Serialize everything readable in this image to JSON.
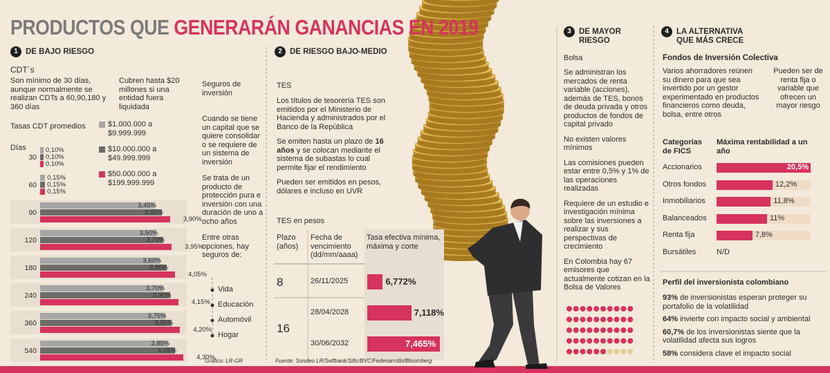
{
  "title": {
    "gray": "PRODUCTOS QUE",
    "pink": "GENERARÁN GANANCIAS EN 2019"
  },
  "low_risk": {
    "number": "1",
    "heading": "DE BAJO RIESGO",
    "product": "CDT´s",
    "intro": "Son mínimo de 30 días, aunque normalmente se realizan CDTs a 60,90,180 y 360 días",
    "coverage": "Cubren hasta $20 millones si una entidad fuera liquidada",
    "rates_title": "Tasas CDT promedios",
    "days_label": "Días",
    "chart_data": {
      "type": "bar",
      "orientation": "horizontal",
      "categories": [
        "30",
        "60",
        "90",
        "120",
        "180",
        "240",
        "360",
        "540"
      ],
      "series": [
        {
          "name": "$1.000.000 a $9.999.999",
          "color": "#a6a6a6",
          "values": [
            0.1,
            0.15,
            3.45,
            3.5,
            3.6,
            3.7,
            3.75,
            3.85
          ],
          "value_labels": [
            "0,10%",
            "0,15%",
            "3,45%",
            "3,50%",
            "3,60%",
            "3,70%",
            "3,75%",
            "3,85%"
          ]
        },
        {
          "name": "$10.000.000 a $49.999.999",
          "color": "#6d6b69",
          "values": [
            0.1,
            0.15,
            3.65,
            3.7,
            3.8,
            3.9,
            3.95,
            4.05
          ],
          "value_labels": [
            "0,10%",
            "0,15%",
            "3,65%",
            "3,70%",
            "3,80%",
            "3,90%",
            "3,95%",
            "4,05%"
          ]
        },
        {
          "name": "$50.000.000 a $199.999.999",
          "color": "#d6335e",
          "values": [
            0.1,
            0.15,
            3.9,
            3.95,
            4.05,
            4.15,
            4.2,
            4.3
          ],
          "value_labels": [
            "0,10%",
            "0,15%",
            "3,90%",
            "3,95%",
            "4,05%",
            "4,15%",
            "4,20%",
            "4,30%"
          ]
        }
      ]
    }
  },
  "insurance": {
    "title": "Seguros de inversión",
    "paragraphs": [
      "Cuando se tiene un capital que se quiere consolidar o se requiere de un sistema de inversión",
      "Se trata de un producto de protección pura e inversión con una duración de uno a ocho años",
      "Entre otras opciones, hay seguros de:"
    ],
    "items": [
      "Vida",
      "Educación",
      "Automóvil",
      "Hogar"
    ]
  },
  "mid_risk": {
    "number": "2",
    "heading": "DE RIESGO BAJO-MEDIO",
    "product": "TES",
    "paragraphs": [
      [
        "Los títulos de tesorería TES son emitidos por el Ministerio de Hacienda y administrados por el Banco de la República"
      ],
      [
        "Se emiten hasta un plazo de ",
        "16 años",
        " y se colocan mediante el sistema de subastas lo cual permite fijar el rendimiento"
      ],
      [
        "Pueden ser emitidos en pesos, dólares e incluso en UVR"
      ]
    ],
    "table": {
      "title": "TES en pesos",
      "headers": [
        "Plazo (años)",
        "Fecha de vencimiento (dd/mm/aaaa)",
        "Tasa efectiva mínima, máxima y corte"
      ],
      "color": "#d6335e",
      "groups": [
        {
          "term": "8",
          "rows": [
            {
              "date": "26/11/2025",
              "rate": 6.772,
              "rate_label": "6,772%"
            }
          ]
        },
        {
          "term": "16",
          "rows": [
            {
              "date": "28/04/2028",
              "rate": 7.118,
              "rate_label": "7,118%"
            },
            {
              "date": "30/06/2032",
              "rate": 7.465,
              "rate_label": "7,465%"
            }
          ]
        }
      ]
    }
  },
  "high_risk": {
    "number": "3",
    "heading": "DE MAYOR RIESGO",
    "product": "Bolsa",
    "paragraphs": [
      "Se administran los mercados de renta variable (acciones), además de TES, bonos de deuda privada y otros productos de fondos de capital privado",
      "No existen valores mínimos",
      "Las comisiones pueden estar entre 0,5% y 1% de las operaciones realizadas",
      "Requiere de un estudio e investigación mínima sobre las inversiones a realizar y sus perspectivas de crecimiento",
      "En Colombia hay 67 emisores que actualmente cotizan en la Bolsa de Valores"
    ]
  },
  "alternative": {
    "number": "4",
    "heading": "LA ALTERNATIVA QUE MÁS CRECE",
    "product": "Fondos de Inversión Colectiva",
    "paragraphs": [
      "Varios ahorradores reúnen su dinero para que sea invertido por un gestor experimentado en productos financieros como deuda, bolsa, entre otros",
      "Pueden ser de renta fija o variable que ofrecen un mayor riesgo"
    ],
    "chart_data": {
      "type": "bar",
      "orientation": "horizontal",
      "category_header": "Categorías de FICS",
      "value_header": "Máxima rentabilidad a un año",
      "categories": [
        "Accionarios",
        "Otros fondos",
        "Inmobiliarios",
        "Balanceados",
        "Renta fija",
        "Bursátiles"
      ],
      "values": [
        20.5,
        12.2,
        11.8,
        11,
        7.8,
        null
      ],
      "value_labels": [
        "20,5%",
        "12,2%",
        "11,8%",
        "11%",
        "7,8%",
        "N/D"
      ],
      "color": "#d6335e",
      "track_color": "#f0dcc6"
    }
  },
  "profile": {
    "title": "Perfil del inversionista colombiano",
    "items": [
      {
        "figure": "93%",
        "text": "de inversionistas esperan proteger su portafolio de la volatilidad"
      },
      {
        "figure": "64%",
        "text": "invierte con impacto social y ambiental"
      },
      {
        "figure": "60,7%",
        "text": "de los inversionistas siente que la volatilidad afecta sus logros"
      },
      {
        "figure": "58%",
        "text": "considera clave el impacto social"
      }
    ]
  },
  "credit": "Gráfico: LR-GR",
  "source": "Fuente: Sondeo LR/Selfbank/Sific/BVC/Fedesarrollo/Bloomberg"
}
